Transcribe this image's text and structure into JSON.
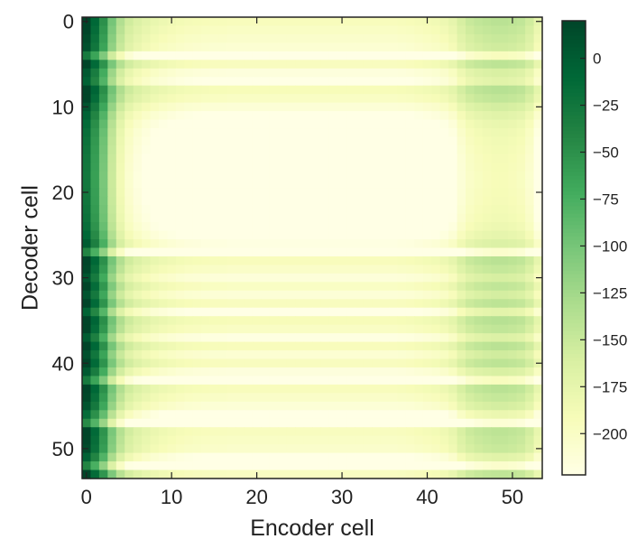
{
  "chart_data": {
    "type": "heatmap",
    "title": "",
    "xlabel": "Encoder cell",
    "ylabel": "Decoder cell",
    "n_cols": 54,
    "n_rows": 54,
    "xlim": [
      -0.5,
      53.5
    ],
    "ylim": [
      -0.5,
      53.5
    ],
    "x_ticks": [
      0,
      10,
      20,
      30,
      40,
      50
    ],
    "y_ticks": [
      0,
      10,
      20,
      30,
      40,
      50
    ],
    "y_axis_inverted": true,
    "colormap": "YlGn",
    "colorbar": {
      "vmin": -222,
      "vmax": 20,
      "ticks": [
        0,
        -25,
        -50,
        -75,
        -100,
        -125,
        -150,
        -175,
        -200
      ],
      "tick_labels": [
        "0",
        "−25",
        "−50",
        "−75",
        "−100",
        "−125",
        "−150",
        "−175",
        "−200"
      ]
    },
    "column_profile": [
      15,
      -20,
      -60,
      -110,
      -145,
      -165,
      -175,
      -182,
      -188,
      -192,
      -195,
      -198,
      -200,
      -201,
      -202,
      -203,
      -203,
      -204,
      -204,
      -204,
      -204,
      -204,
      -204,
      -204,
      -204,
      -204,
      -204,
      -204,
      -204,
      -204,
      -204,
      -204,
      -204,
      -204,
      -204,
      -204,
      -204,
      -203,
      -202,
      -200,
      -198,
      -196,
      -192,
      -185,
      -170,
      -160,
      -155,
      -152,
      -150,
      -150,
      -152,
      -155,
      -165,
      -185
    ],
    "row_offsets": [
      10,
      5,
      0,
      -5,
      -45,
      8,
      -12,
      -20,
      12,
      5,
      -8,
      -20,
      -28,
      -33,
      -36,
      -38,
      -40,
      -41,
      -42,
      -42,
      -41,
      -40,
      -38,
      -36,
      -32,
      -25,
      -15,
      -55,
      10,
      2,
      -10,
      5,
      -8,
      8,
      -22,
      12,
      5,
      -15,
      10,
      -5,
      8,
      -12,
      -45,
      10,
      2,
      -8,
      -30,
      -60,
      8,
      4,
      0,
      -20,
      -55,
      6
    ],
    "grid": false,
    "legend": "none"
  }
}
